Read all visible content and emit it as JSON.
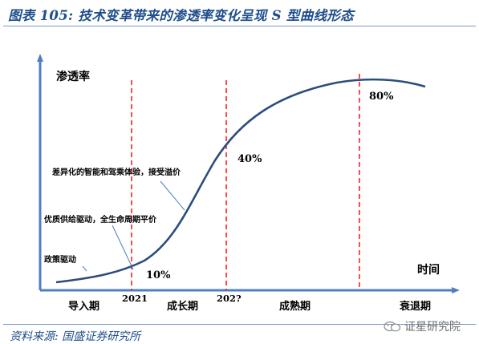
{
  "title": "图表 105:  技术变革带来的渗透率变化呈现 S 型曲线形态",
  "source": "资料来源:  国盛证券研究所",
  "watermark": "证星研究院",
  "axis": {
    "y_label": "渗透率",
    "x_label": "时间"
  },
  "markers": [
    {
      "year": "2021",
      "penetration": "10%"
    },
    {
      "year": "202?",
      "penetration": "40%"
    },
    {
      "year": "",
      "penetration": "80%"
    }
  ],
  "stages": [
    "导入期",
    "成长期",
    "成熟期",
    "衰退期"
  ],
  "drivers": [
    "政策驱动",
    "优质供给驱动，全生命周期平价",
    "差异化的智能和驾乘体验，接受溢价"
  ],
  "colors": {
    "curve": "#2b4d7e",
    "axis": "#4f7fc0",
    "marker": "#ff0000",
    "title": "#1f4e8c"
  }
}
